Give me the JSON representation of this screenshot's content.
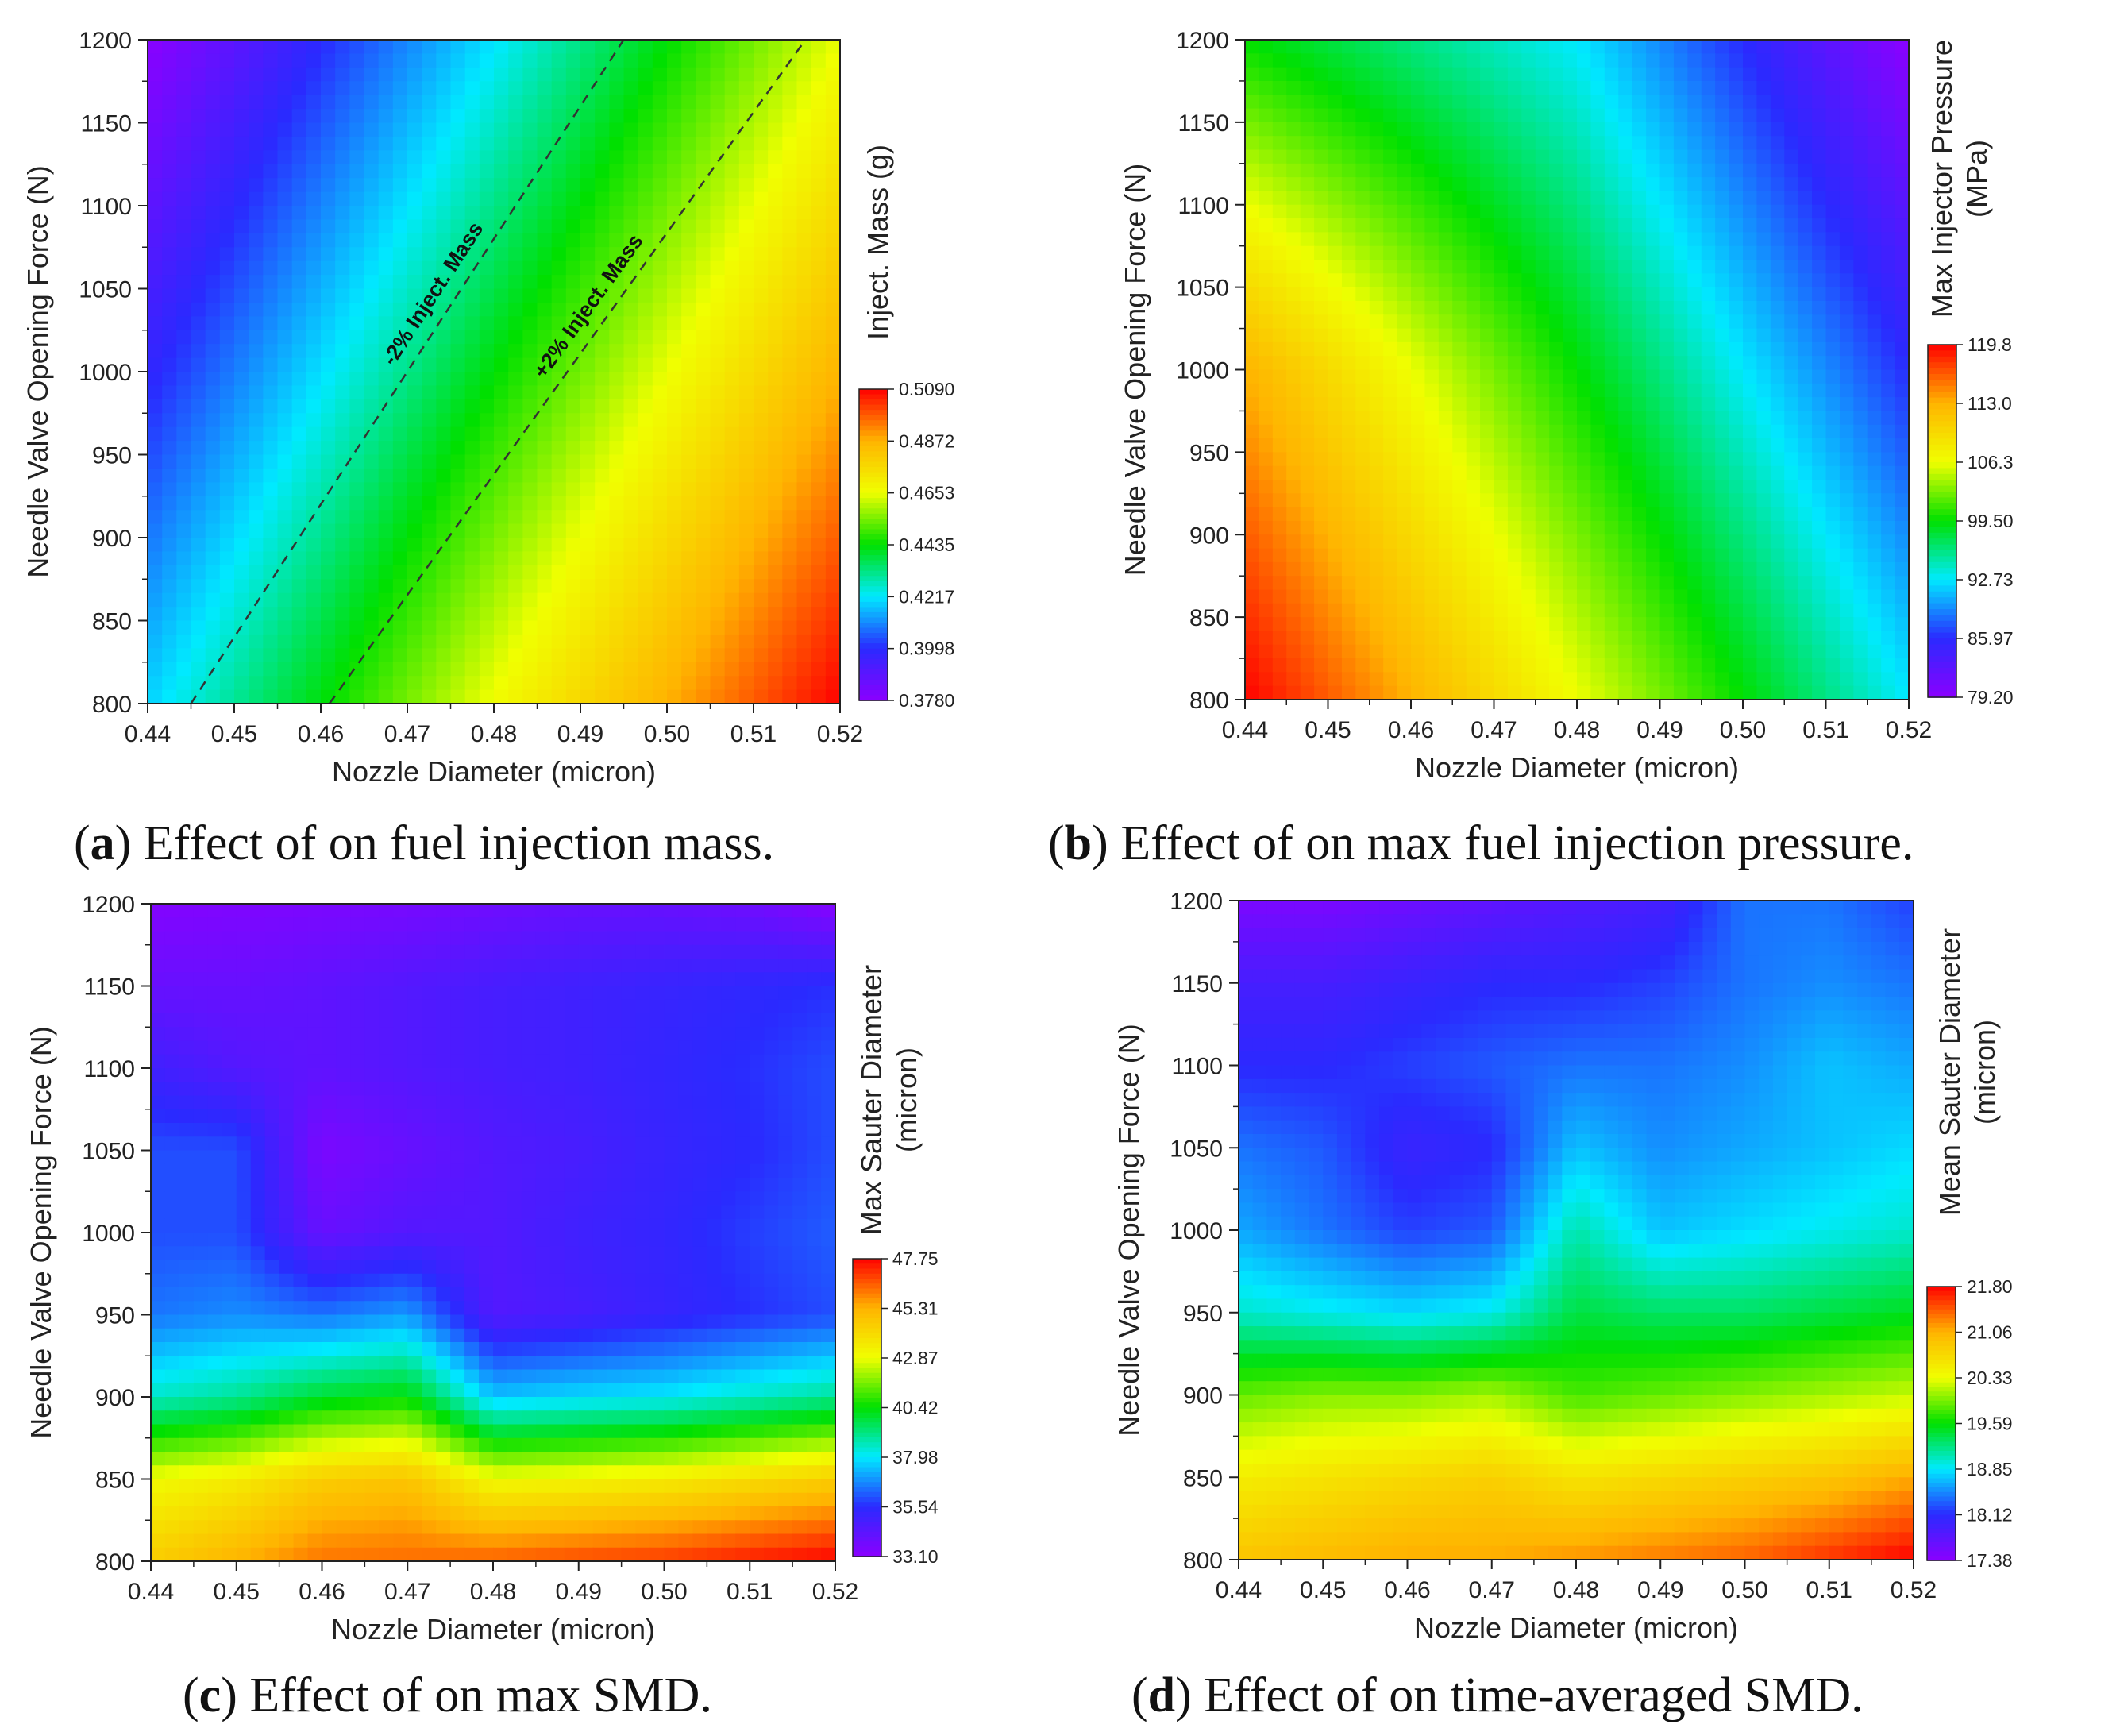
{
  "colors": {
    "colormap": [
      "#8b00ff",
      "#2a2aff",
      "#00eaff",
      "#00e000",
      "#f0ff00",
      "#ffb400",
      "#ff0000"
    ],
    "contour_line": "#333333",
    "axis": "#222222"
  },
  "chart_data": [
    {
      "type": "heatmap",
      "title": "",
      "xlabel": "Nozzle Diameter (micron)",
      "ylabel": "Needle Valve Opening Force (N)",
      "xlim": [
        0.44,
        0.52
      ],
      "ylim": [
        800,
        1200
      ],
      "x_ticks": [
        "0.44",
        "0.45",
        "0.46",
        "0.47",
        "0.48",
        "0.49",
        "0.50",
        "0.51",
        "0.52"
      ],
      "y_ticks": [
        "800",
        "850",
        "900",
        "950",
        "1000",
        "1050",
        "1100",
        "1150",
        "1200"
      ],
      "colorbar_title": [
        "Inject. Mass (g)"
      ],
      "colorbar_ticks": [
        "0.5090",
        "0.4872",
        "0.4653",
        "0.4435",
        "0.4217",
        "0.3998",
        "0.3780"
      ],
      "zlim": [
        0.378,
        0.509
      ],
      "x": [
        0.44,
        0.48,
        0.52
      ],
      "y": [
        800,
        1000,
        1200
      ],
      "z": [
        [
          0.419,
          0.466,
          0.509
        ],
        [
          0.398,
          0.443,
          0.487
        ],
        [
          0.378,
          0.421,
          0.465
        ]
      ],
      "contours": [
        {
          "label": "-2% Inject. Mass",
          "points": [
            [
              0.445,
              800
            ],
            [
              0.495,
              1200
            ]
          ]
        },
        {
          "label": "+2% Inject. Mass",
          "points": [
            [
              0.461,
              800
            ],
            [
              0.516,
              1200
            ]
          ]
        }
      ],
      "caption": {
        "letter": "a",
        "text": ") Effect of on fuel injection mass."
      }
    },
    {
      "type": "heatmap",
      "title": "",
      "xlabel": "Nozzle Diameter (micron)",
      "ylabel": "Needle Valve Opening Force (N)",
      "xlim": [
        0.44,
        0.52
      ],
      "ylim": [
        800,
        1200
      ],
      "x_ticks": [
        "0.44",
        "0.45",
        "0.46",
        "0.47",
        "0.48",
        "0.49",
        "0.50",
        "0.51",
        "0.52"
      ],
      "y_ticks": [
        "800",
        "850",
        "900",
        "950",
        "1000",
        "1050",
        "1100",
        "1150",
        "1200"
      ],
      "colorbar_title": [
        "Max Injector Pressure",
        "(MPa)"
      ],
      "colorbar_ticks": [
        "119.8",
        "113.0",
        "106.3",
        "99.50",
        "92.73",
        "85.97",
        "79.20"
      ],
      "zlim": [
        79.2,
        119.8
      ],
      "x": [
        0.44,
        0.48,
        0.52
      ],
      "y": [
        800,
        1000,
        1200
      ],
      "z": [
        [
          119.8,
          106.3,
          92.7
        ],
        [
          113.0,
          99.5,
          86.0
        ],
        [
          99.5,
          92.7,
          79.2
        ]
      ],
      "contours": [],
      "caption": {
        "letter": "b",
        "text": ") Effect of on max fuel injection pressure."
      }
    },
    {
      "type": "heatmap",
      "title": "",
      "xlabel": "Nozzle Diameter (micron)",
      "ylabel": "Needle Valve Opening Force (N)",
      "xlim": [
        0.44,
        0.52
      ],
      "ylim": [
        800,
        1200
      ],
      "x_ticks": [
        "0.44",
        "0.45",
        "0.46",
        "0.47",
        "0.48",
        "0.49",
        "0.50",
        "0.51",
        "0.52"
      ],
      "y_ticks": [
        "800",
        "850",
        "900",
        "950",
        "1000",
        "1050",
        "1100",
        "1150",
        "1200"
      ],
      "colorbar_title": [
        "Max Sauter Diameter",
        "(micron)"
      ],
      "colorbar_ticks": [
        "47.75",
        "45.31",
        "42.87",
        "40.42",
        "37.98",
        "35.54",
        "33.10"
      ],
      "zlim": [
        33.1,
        47.75
      ],
      "x": [
        0.44,
        0.45,
        0.46,
        0.47,
        0.48,
        0.49,
        0.5,
        0.51,
        0.52
      ],
      "y": [
        800,
        850,
        900,
        950,
        1000,
        1050,
        1100,
        1150,
        1200
      ],
      "z": [
        [
          44.5,
          45.3,
          46.2,
          46.3,
          46.5,
          46.8,
          47.0,
          47.4,
          47.75
        ],
        [
          43.0,
          43.5,
          44.5,
          44.8,
          43.0,
          43.2,
          43.5,
          44.0,
          44.5
        ],
        [
          38.5,
          39.0,
          40.0,
          40.4,
          37.5,
          37.8,
          38.0,
          38.5,
          39.0
        ],
        [
          36.5,
          36.8,
          36.5,
          37.0,
          34.5,
          34.8,
          35.2,
          35.6,
          36.0
        ],
        [
          36.0,
          36.0,
          34.0,
          34.5,
          34.5,
          35.0,
          35.3,
          35.8,
          36.2
        ],
        [
          36.0,
          36.0,
          33.5,
          34.0,
          34.5,
          34.8,
          35.2,
          35.5,
          36.0
        ],
        [
          35.0,
          34.5,
          34.2,
          34.5,
          34.8,
          35.0,
          35.3,
          35.6,
          36.0
        ],
        [
          34.0,
          34.0,
          34.2,
          34.5,
          34.8,
          35.0,
          35.2,
          35.4,
          35.6
        ],
        [
          33.3,
          33.4,
          33.5,
          33.6,
          33.8,
          34.0,
          34.0,
          33.8,
          33.2
        ]
      ],
      "contours": [],
      "caption": {
        "letter": "c",
        "text": ") Effect of on max SMD."
      }
    },
    {
      "type": "heatmap",
      "title": "",
      "xlabel": "Nozzle Diameter (micron)",
      "ylabel": "Needle Valve Opening Force (N)",
      "xlim": [
        0.44,
        0.52
      ],
      "ylim": [
        800,
        1200
      ],
      "x_ticks": [
        "0.44",
        "0.45",
        "0.46",
        "0.47",
        "0.48",
        "0.49",
        "0.50",
        "0.51",
        "0.52"
      ],
      "y_ticks": [
        "800",
        "850",
        "900",
        "950",
        "1000",
        "1050",
        "1100",
        "1150",
        "1200"
      ],
      "colorbar_title": [
        "Mean Sauter Diameter",
        "(micron)"
      ],
      "colorbar_ticks": [
        "21.80",
        "21.06",
        "20.33",
        "19.59",
        "18.85",
        "18.12",
        "17.38"
      ],
      "zlim": [
        17.38,
        21.8
      ],
      "x": [
        0.44,
        0.45,
        0.46,
        0.47,
        0.48,
        0.49,
        0.5,
        0.51,
        0.52
      ],
      "y": [
        800,
        850,
        900,
        950,
        1000,
        1050,
        1100,
        1150,
        1200
      ],
      "z": [
        [
          20.9,
          21.0,
          21.1,
          21.1,
          21.2,
          21.3,
          21.4,
          21.6,
          21.8
        ],
        [
          20.5,
          20.6,
          20.7,
          20.8,
          20.6,
          20.7,
          20.8,
          20.9,
          21.1
        ],
        [
          19.9,
          20.0,
          20.0,
          20.1,
          19.8,
          19.9,
          20.0,
          20.1,
          20.2
        ],
        [
          19.0,
          18.9,
          18.8,
          18.9,
          19.4,
          19.3,
          19.3,
          19.4,
          19.5
        ],
        [
          18.6,
          18.4,
          18.2,
          18.3,
          19.1,
          18.7,
          18.8,
          18.9,
          19.0
        ],
        [
          18.4,
          18.3,
          18.0,
          18.1,
          18.7,
          18.5,
          18.6,
          18.7,
          18.8
        ],
        [
          18.1,
          18.1,
          18.2,
          18.3,
          18.4,
          18.4,
          18.5,
          18.7,
          18.6
        ],
        [
          17.9,
          17.9,
          18.0,
          18.1,
          18.1,
          18.2,
          18.4,
          18.5,
          18.4
        ],
        [
          17.5,
          17.5,
          17.6,
          17.7,
          17.8,
          17.9,
          18.4,
          18.4,
          18.2
        ]
      ],
      "contours": [],
      "caption": {
        "letter": "d",
        "text": ") Effect of on time-averaged SMD."
      }
    }
  ]
}
